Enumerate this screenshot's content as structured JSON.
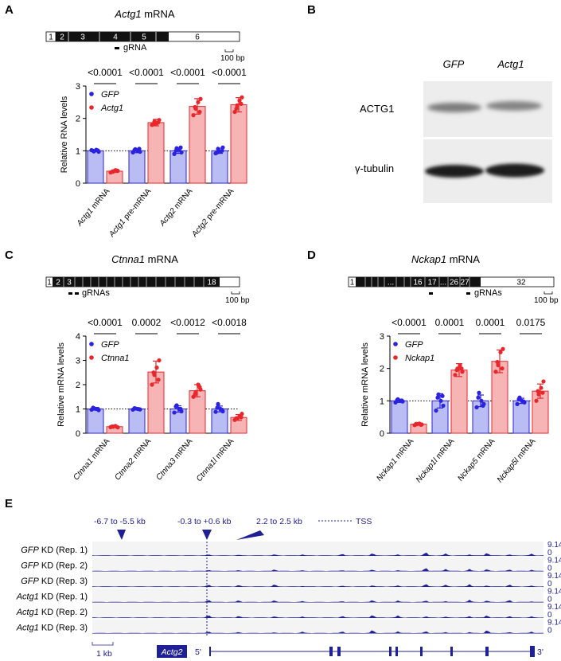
{
  "colors": {
    "gfp": "#2b22e0",
    "gfp_fill": "#b9bdf4",
    "kd": "#e8262b",
    "kd_fill": "#f7b4b4",
    "track": "#202096",
    "exon_dark": "#111111"
  },
  "panel_labels": [
    "A",
    "B",
    "C",
    "D",
    "E"
  ],
  "panel_a": {
    "title_gene": "Actg1",
    "title_suffix": " mRNA",
    "gene_exons": [
      "1",
      "2",
      "3",
      "4",
      "5",
      "6"
    ],
    "grna_label": "gRNA",
    "scale_label": "100 bp"
  },
  "panel_b": {
    "columns": [
      "GFP",
      "Actg1"
    ],
    "rows": [
      "ACTG1",
      "γ-tubulin"
    ]
  },
  "panel_c": {
    "title_gene": "Ctnna1",
    "title_suffix": " mRNA",
    "gene_exons": [
      "1",
      "2",
      "3",
      "18"
    ],
    "grna_label": "gRNAs",
    "scale_label": "100 bp"
  },
  "panel_d": {
    "title_gene": "Nckap1",
    "title_suffix": " mRNA",
    "gene_exons": [
      "1",
      "...",
      "16",
      "17",
      "...",
      "26",
      "27",
      "32"
    ],
    "grna_label": "gRNAs",
    "scale_label": "100 bp"
  },
  "panel_e": {
    "region_labels": [
      "-6.7 to -5.5 kb",
      "-0.3 to +0.6 kb",
      "2.2 to 2.5 kb"
    ],
    "tss_label": "TSS",
    "track_max": "9.14",
    "track_min": "0",
    "tracks": [
      {
        "gene": "GFP",
        "rest": " KD (Rep. 1)"
      },
      {
        "gene": "GFP",
        "rest": " KD (Rep. 2)"
      },
      {
        "gene": "GFP",
        "rest": " KD (Rep. 3)"
      },
      {
        "gene": "Actg1",
        "rest": " KD (Rep. 1)"
      },
      {
        "gene": "Actg1",
        "rest": " KD (Rep. 2)"
      },
      {
        "gene": "Actg1",
        "rest": " KD (Rep. 3)"
      }
    ],
    "scale_label": "1 kb",
    "gene_label": "Actg2",
    "five_prime": "5'",
    "three_prime": "3'"
  },
  "chart_data": [
    {
      "type": "bar",
      "panel": "A",
      "ylabel": "Relative RNA levels",
      "ylim": [
        0,
        3
      ],
      "yticks": [
        0,
        1,
        2,
        3
      ],
      "reference_line": 1,
      "legend": [
        "GFP",
        "Actg1"
      ],
      "categories": [
        "Actg1 mRNA",
        "Actg1 pre-mRNA",
        "Actg2 mRNA",
        "Actg2 pre-mRNA"
      ],
      "pvalues": [
        "<0.0001",
        "<0.0001",
        "<0.0001",
        "<0.0001"
      ],
      "series": [
        {
          "name": "GFP",
          "values": [
            1.0,
            1.0,
            1.0,
            1.0
          ],
          "sd": [
            0.03,
            0.06,
            0.08,
            0.08
          ],
          "points": [
            [
              1.02,
              0.98,
              1.03,
              0.97,
              1.0,
              1.01
            ],
            [
              0.95,
              1.05,
              1.0,
              0.97,
              1.02,
              1.06
            ],
            [
              0.9,
              1.08,
              1.03,
              0.95,
              1.0,
              1.1
            ],
            [
              0.92,
              1.06,
              0.98,
              1.1,
              0.95,
              1.0
            ]
          ]
        },
        {
          "name": "Actg1",
          "values": [
            0.37,
            1.87,
            2.37,
            2.42
          ],
          "sd": [
            0.04,
            0.1,
            0.24,
            0.22
          ],
          "points": [
            [
              0.33,
              0.36,
              0.4,
              0.38,
              0.35,
              0.39
            ],
            [
              1.8,
              1.9,
              1.85,
              1.95,
              1.82,
              1.88
            ],
            [
              2.1,
              2.3,
              2.5,
              2.6,
              2.35,
              2.2
            ],
            [
              2.2,
              2.4,
              2.55,
              2.65,
              2.3,
              2.45
            ]
          ]
        }
      ]
    },
    {
      "type": "bar",
      "panel": "C",
      "ylabel": "Relative mRNA levels",
      "ylim": [
        0,
        4
      ],
      "yticks": [
        0,
        1,
        2,
        3,
        4
      ],
      "reference_line": 1,
      "legend": [
        "GFP",
        "Ctnna1"
      ],
      "categories": [
        "Ctnna1 mRNA",
        "Ctnna2 mRNA",
        "Ctnna3 mRNA",
        "Ctnna1l mRNA"
      ],
      "pvalues": [
        "<0.0001",
        "0.0002",
        "<0.0012",
        "<0.0018"
      ],
      "series": [
        {
          "name": "GFP",
          "values": [
            1.0,
            1.0,
            1.0,
            1.0
          ],
          "sd": [
            0.05,
            0.04,
            0.13,
            0.12
          ],
          "points": [
            [
              0.97,
              1.03,
              1.0,
              0.95,
              1.05,
              1.0
            ],
            [
              0.97,
              1.02,
              1.0,
              0.98,
              1.03,
              0.99
            ],
            [
              0.85,
              1.15,
              1.0,
              0.9,
              1.1,
              1.0
            ],
            [
              0.88,
              1.2,
              1.0,
              0.9,
              1.05,
              0.97
            ]
          ]
        },
        {
          "name": "Ctnna1",
          "values": [
            0.27,
            2.52,
            1.75,
            0.65
          ],
          "sd": [
            0.03,
            0.45,
            0.25,
            0.12
          ],
          "points": [
            [
              0.25,
              0.27,
              0.3,
              0.24,
              0.28,
              0.26
            ],
            [
              2.0,
              2.4,
              2.7,
              3.0,
              2.5,
              2.2
            ],
            [
              1.5,
              1.7,
              2.0,
              1.8,
              1.6,
              1.9
            ],
            [
              0.55,
              0.6,
              0.7,
              0.8,
              0.62,
              0.66
            ]
          ]
        }
      ]
    },
    {
      "type": "bar",
      "panel": "D",
      "ylabel": "Relative mRNA levels",
      "ylim": [
        0,
        3
      ],
      "yticks": [
        0,
        1,
        2,
        3
      ],
      "reference_line": 1,
      "legend": [
        "GFP",
        "Nckap1"
      ],
      "categories": [
        "Nckap1 mRNA",
        "Nckap1l mRNA",
        "Nckap5 mRNA",
        "Nckap5l mRNA"
      ],
      "pvalues": [
        "<0.0001",
        "0.0001",
        "0.0001",
        "0.0175"
      ],
      "series": [
        {
          "name": "GFP",
          "values": [
            1.0,
            1.0,
            1.0,
            1.0
          ],
          "sd": [
            0.05,
            0.22,
            0.18,
            0.08
          ],
          "points": [
            [
              0.95,
              1.05,
              1.0,
              0.98,
              1.02,
              1.01
            ],
            [
              0.7,
              1.2,
              1.0,
              0.85,
              1.1,
              1.15
            ],
            [
              0.8,
              1.25,
              1.0,
              0.9,
              1.1,
              0.85
            ],
            [
              0.9,
              1.1,
              1.0,
              0.95,
              1.05,
              0.98
            ]
          ]
        },
        {
          "name": "Nckap1",
          "values": [
            0.28,
            1.95,
            2.22,
            1.3
          ],
          "sd": [
            0.03,
            0.2,
            0.35,
            0.22
          ],
          "points": [
            [
              0.25,
              0.28,
              0.3,
              0.27,
              0.29,
              0.26
            ],
            [
              1.8,
              2.0,
              2.1,
              1.9,
              1.95,
              2.0
            ],
            [
              1.9,
              2.1,
              2.5,
              2.6,
              2.2,
              2.0
            ],
            [
              1.0,
              1.2,
              1.4,
              1.6,
              1.3,
              1.25
            ]
          ]
        }
      ]
    }
  ]
}
